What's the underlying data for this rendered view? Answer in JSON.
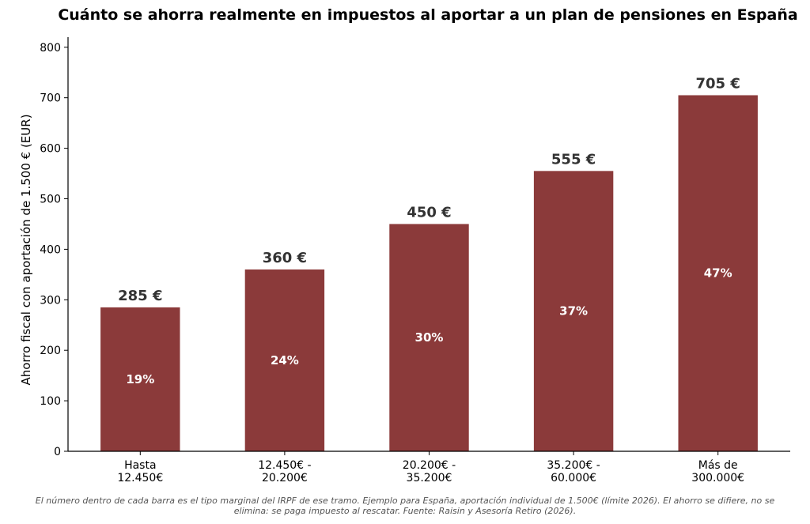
{
  "chart_data": {
    "type": "bar",
    "title": "Cuánto se ahorra realmente en impuestos al aportar a un plan de pensiones en España",
    "ylabel": "Ahorro fiscal con aportación de 1.500 € (EUR)",
    "xlabel": "",
    "categories": [
      [
        "Hasta",
        "12.450€"
      ],
      [
        "12.450€ -",
        "20.200€"
      ],
      [
        "20.200€ -",
        "35.200€"
      ],
      [
        "35.200€ -",
        "60.000€"
      ],
      [
        "Más de",
        "300.000€"
      ]
    ],
    "values": [
      285,
      360,
      450,
      555,
      705
    ],
    "value_labels": [
      "285 €",
      "360 €",
      "450 €",
      "555 €",
      "705 €"
    ],
    "rate_labels": [
      "19%",
      "24%",
      "30%",
      "37%",
      "47%"
    ],
    "ylim": [
      0,
      820
    ],
    "yticks": [
      0,
      100,
      200,
      300,
      400,
      500,
      600,
      700,
      800
    ],
    "bar_color": "#8b3a3a",
    "grid": false,
    "legend": "none"
  },
  "footnote": {
    "line1": "El número dentro de cada barra es el tipo marginal del IRPF de ese tramo. Ejemplo para España, aportación individual de 1.500€ (límite 2026). El ahorro se difiere, no se",
    "line2": "elimina: se paga impuesto al rescatar. Fuente: Raisin y Asesoría Retiro (2026)."
  }
}
